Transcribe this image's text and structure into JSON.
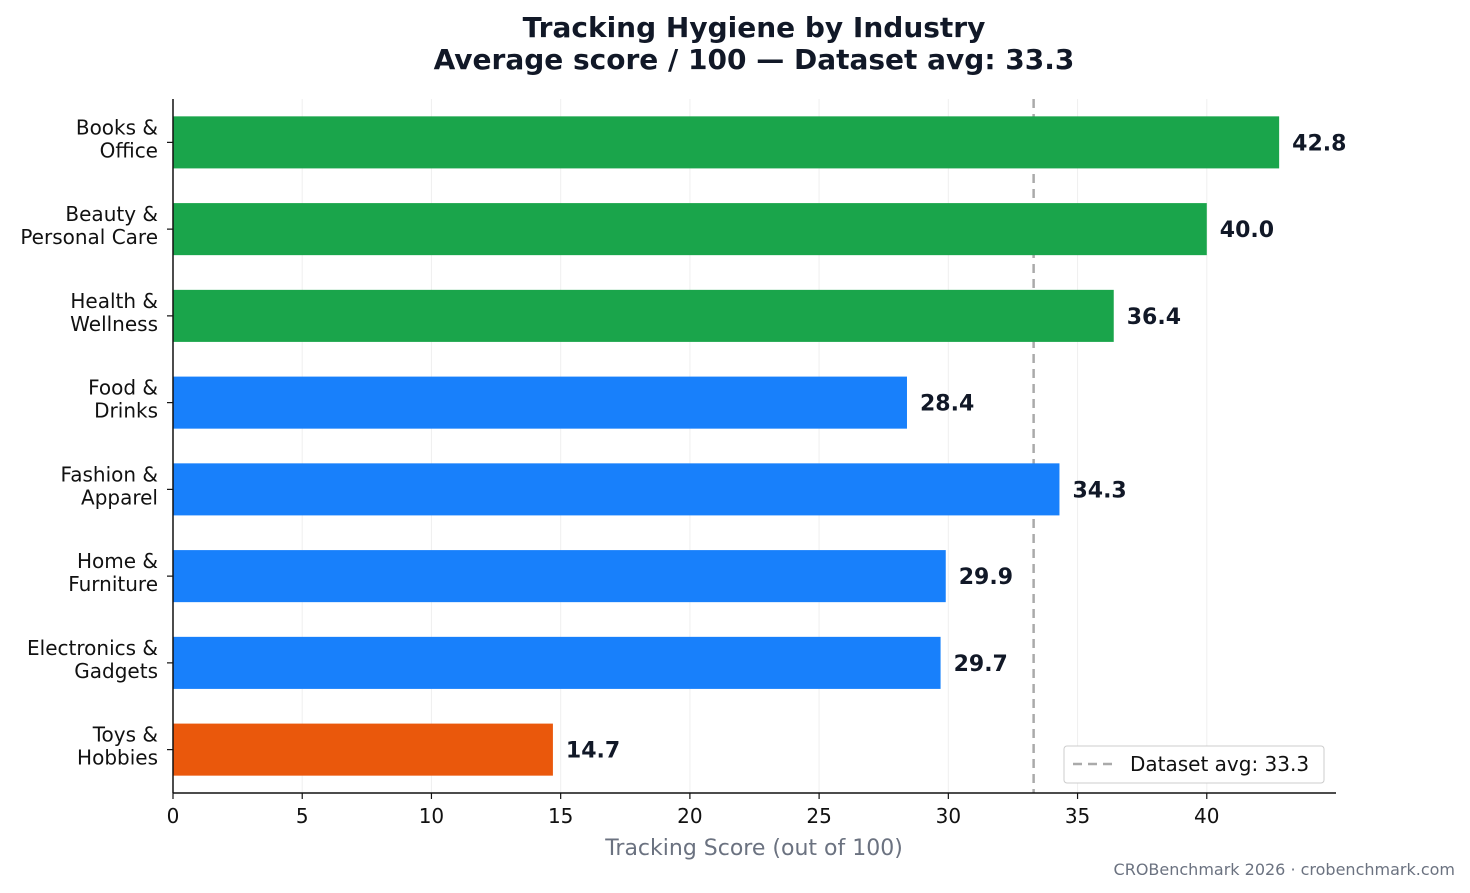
{
  "chart_data": {
    "type": "bar",
    "orientation": "horizontal",
    "title": "Tracking Hygiene by Industry",
    "subtitle": "Average score / 100 — Dataset avg: 33.3",
    "xlabel": "Tracking Score (out of 100)",
    "ylabel": "",
    "xlim": [
      0,
      45
    ],
    "xticks": [
      0,
      5,
      10,
      15,
      20,
      25,
      30,
      35,
      40
    ],
    "grid": "vertical",
    "categories": [
      [
        "Books &",
        "Office"
      ],
      [
        "Beauty &",
        "Personal Care"
      ],
      [
        "Health &",
        "Wellness"
      ],
      [
        "Food &",
        "Drinks"
      ],
      [
        "Fashion &",
        "Apparel"
      ],
      [
        "Home &",
        "Furniture"
      ],
      [
        "Electronics &",
        "Gadgets"
      ],
      [
        "Toys &",
        "Hobbies"
      ]
    ],
    "values": [
      42.8,
      40.0,
      36.4,
      28.4,
      34.3,
      29.9,
      29.7,
      14.7
    ],
    "value_labels": [
      "42.8",
      "40.0",
      "36.4",
      "28.4",
      "34.3",
      "29.9",
      "29.7",
      "14.7"
    ],
    "bar_colors": [
      "#1aa54b",
      "#1aa54b",
      "#1aa54b",
      "#1880fb",
      "#1880fb",
      "#1880fb",
      "#1880fb",
      "#ea580c"
    ],
    "reference_line": {
      "value": 33.3,
      "label": "Dataset avg: 33.3",
      "color": "#aaaaaa",
      "style": "dashed"
    },
    "legend": {
      "placement": "bottom-right",
      "entries": [
        "Dataset avg: 33.3"
      ]
    }
  },
  "footer": {
    "credit": "CROBenchmark 2026 · crobenchmark.com"
  }
}
